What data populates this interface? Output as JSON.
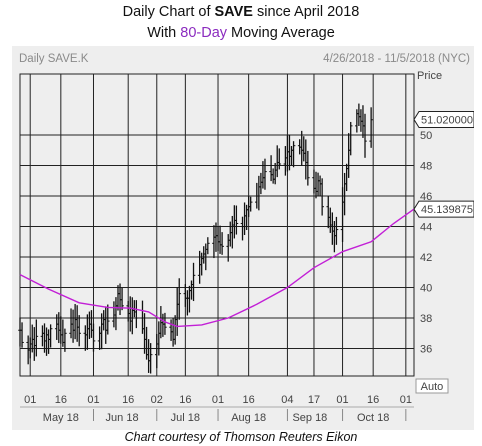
{
  "title": {
    "prefix": "Daily Chart of ",
    "ticker": "SAVE",
    "suffix": " since April 2018",
    "line2_prefix": "With ",
    "line2_highlight": "80-Day",
    "line2_suffix": " Moving Average"
  },
  "header": {
    "symbol": "Daily SAVE.K",
    "range": "4/26/2018 - 11/5/2018 (NYC)",
    "price_label": "Price",
    "auto_label": "Auto"
  },
  "credit": "Chart courtesy of Thomson Reuters Eikon",
  "colors": {
    "price_bars": "#111111",
    "moving_average": "#c21fd6",
    "panel_bg": "#eeeeee",
    "grid": "#222222",
    "highlight_text": "#8b2bbf"
  },
  "chart_data": {
    "type": "ohlc",
    "ylim": [
      34.2,
      54.0
    ],
    "y_ticks": [
      36,
      38,
      40,
      42,
      44,
      46,
      48,
      50
    ],
    "x_tick_labels": [
      "01",
      "16",
      "01",
      "16",
      "02",
      "16",
      "01",
      "16",
      "04",
      "17",
      "01",
      "16",
      "01"
    ],
    "month_labels": [
      "May 18",
      "Jun 18",
      "Jul 18",
      "Aug 18",
      "Sep 18",
      "Oct 18"
    ],
    "price_tag": "51.020000",
    "ma_tag": "45.139875",
    "last_price": 51.02,
    "ma_last": 45.139875,
    "series": [
      {
        "name": "SAVE.K",
        "kind": "daily price (approx. closes)",
        "start": "2018-04-26",
        "values": [
          37.2,
          36.4,
          35.9,
          36.3,
          36.6,
          36.2,
          36.8,
          37.0,
          36.5,
          36.9,
          36.6,
          37.3,
          37.6,
          37.2,
          36.9,
          36.4,
          37.0,
          37.6,
          37.2,
          37.9,
          37.4,
          37.0,
          36.9,
          37.3,
          37.6,
          37.2,
          36.5,
          37.0,
          37.6,
          37.9,
          37.2,
          37.8,
          38.2,
          38.8,
          39.6,
          39.2,
          38.8,
          38.3,
          37.8,
          38.5,
          38.4,
          38.0,
          37.3,
          36.6,
          35.6,
          35.2,
          35.6,
          36.3,
          37.0,
          37.7,
          37.6,
          37.4,
          37.1,
          36.6,
          37.9,
          38.9,
          39.6,
          39.3,
          39.3,
          39.8,
          40.2,
          40.8,
          41.5,
          41.9,
          42.2,
          42.5,
          42.9,
          43.3,
          43.4,
          43.0,
          42.8,
          42.7,
          43.1,
          43.6,
          44.1,
          44.4,
          44.2,
          44.0,
          44.7,
          45.1,
          45.3,
          45.6,
          46.0,
          46.6,
          46.9,
          47.2,
          47.6,
          47.4,
          47.1,
          47.7,
          48.2,
          48.1,
          48.5,
          48.9,
          48.6,
          49.0,
          49.3,
          49.2,
          49.0,
          48.8,
          48.2,
          47.2,
          46.5,
          46.3,
          47.0,
          46.8,
          45.3,
          44.6,
          44.1,
          43.7,
          43.4,
          43.8,
          45.6,
          46.8,
          47.8,
          49.0,
          50.6,
          51.4,
          51.2,
          50.9,
          50.6,
          49.6,
          51.0
        ]
      },
      {
        "name": "80-Day Moving Average",
        "kind": "moving average",
        "points": [
          {
            "date": "2018-04-26",
            "value": 40.85
          },
          {
            "date": "2018-05-10",
            "value": 39.9
          },
          {
            "date": "2018-05-25",
            "value": 39.0
          },
          {
            "date": "2018-06-08",
            "value": 38.7
          },
          {
            "date": "2018-06-19",
            "value": 38.65
          },
          {
            "date": "2018-06-28",
            "value": 38.4
          },
          {
            "date": "2018-07-06",
            "value": 37.75
          },
          {
            "date": "2018-07-12",
            "value": 37.45
          },
          {
            "date": "2018-07-24",
            "value": 37.55
          },
          {
            "date": "2018-08-06",
            "value": 38.0
          },
          {
            "date": "2018-08-20",
            "value": 38.9
          },
          {
            "date": "2018-09-04",
            "value": 40.0
          },
          {
            "date": "2018-09-17",
            "value": 41.3
          },
          {
            "date": "2018-10-01",
            "value": 42.35
          },
          {
            "date": "2018-10-15",
            "value": 43.0
          },
          {
            "date": "2018-10-26",
            "value": 44.2
          },
          {
            "date": "2018-11-05",
            "value": 45.14
          }
        ]
      }
    ]
  }
}
